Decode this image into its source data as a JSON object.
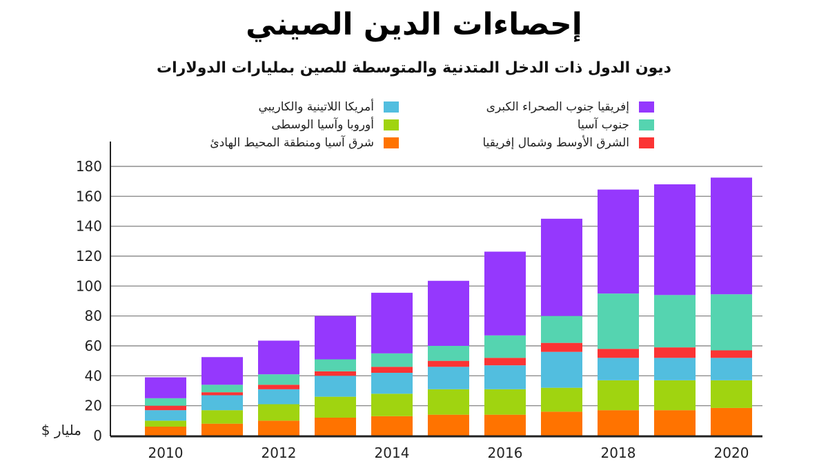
{
  "chart_data": {
    "type": "bar",
    "stacked": true,
    "title": "إحصاءات الدين الصيني",
    "subtitle": "ديون الدول ذات الدخل المتدنية والمتوسطة للصين بمليارات الدولارات",
    "ylabel": "مليار $",
    "ylim": [
      0,
      180
    ],
    "yticks": [
      0,
      20,
      40,
      60,
      80,
      100,
      120,
      140,
      160,
      180
    ],
    "grid": true,
    "legend_position": "top",
    "categories": [
      "2010",
      "2011",
      "2012",
      "2013",
      "2014",
      "2015",
      "2016",
      "2017",
      "2018",
      "2019",
      "2020"
    ],
    "xtick_labels": [
      "2010",
      "2012",
      "2014",
      "2016",
      "2018",
      "2020"
    ],
    "series": [
      {
        "name": "شرق آسيا ومنطقة المحيط الهادئ",
        "color": "#ff7300",
        "values": [
          6,
          8,
          10,
          12,
          13,
          14,
          14,
          16,
          17,
          17,
          18.5
        ]
      },
      {
        "name": "أوروبا وآسيا الوسطى",
        "color": "#a0d410",
        "values": [
          4,
          9,
          11,
          14,
          15,
          17,
          17,
          16,
          20,
          20,
          18.5
        ]
      },
      {
        "name": "أمريكا اللاتينية والكاريبي",
        "color": "#52bedf",
        "values": [
          7,
          10,
          10,
          14,
          14,
          15,
          16,
          24,
          15,
          15,
          15
        ]
      },
      {
        "name": "الشرق الأوسط وشمال إفريقيا",
        "color": "#fb3434",
        "values": [
          3,
          2,
          3,
          3,
          4,
          4,
          5,
          6,
          6,
          7,
          5
        ]
      },
      {
        "name": "جنوب آسيا",
        "color": "#55d4b0",
        "values": [
          5,
          5,
          7,
          8,
          9,
          10,
          15,
          18,
          37,
          35,
          37.5
        ]
      },
      {
        "name": "إفريقيا جنوب الصحراء الكبرى",
        "color": "#9538fd",
        "values": [
          14,
          18.5,
          22.5,
          29,
          40.5,
          43.5,
          56,
          65,
          69.5,
          74,
          78
        ]
      }
    ]
  }
}
